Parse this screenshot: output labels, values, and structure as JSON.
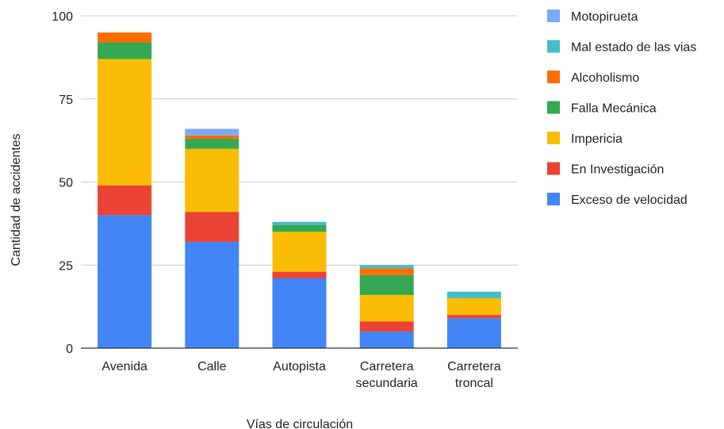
{
  "chart_data": {
    "type": "bar",
    "stacked": true,
    "xlabel": "Vías de circulación",
    "ylabel": "Cantidad de accidentes",
    "ylim": [
      0,
      100
    ],
    "yticks": [
      0,
      25,
      50,
      75,
      100
    ],
    "grid": true,
    "legend_position": "right",
    "categories": [
      [
        "Avenida"
      ],
      [
        "Calle"
      ],
      [
        "Autopista"
      ],
      [
        "Carretera",
        "secundaria"
      ],
      [
        "Carretera",
        "troncal"
      ]
    ],
    "series": [
      {
        "name": "Exceso de velocidad",
        "color": "#4285f4",
        "values": [
          40,
          32,
          21,
          5,
          9
        ]
      },
      {
        "name": "En Investigación",
        "color": "#ea4335",
        "values": [
          9,
          9,
          2,
          3,
          1
        ]
      },
      {
        "name": "Impericia",
        "color": "#fbbc04",
        "values": [
          38,
          19,
          12,
          8,
          5
        ]
      },
      {
        "name": "Falla Mecánica",
        "color": "#34a853",
        "values": [
          5,
          3,
          2,
          6,
          0
        ]
      },
      {
        "name": "Alcoholismo",
        "color": "#ff6d01",
        "values": [
          3,
          1,
          0,
          2,
          0
        ]
      },
      {
        "name": "Mal estado de las vias",
        "color": "#46bdc6",
        "values": [
          0,
          0,
          1,
          1,
          2
        ]
      },
      {
        "name": "Motopirueta",
        "color": "#7baaf7",
        "values": [
          0,
          2,
          0,
          0,
          0
        ]
      }
    ]
  }
}
